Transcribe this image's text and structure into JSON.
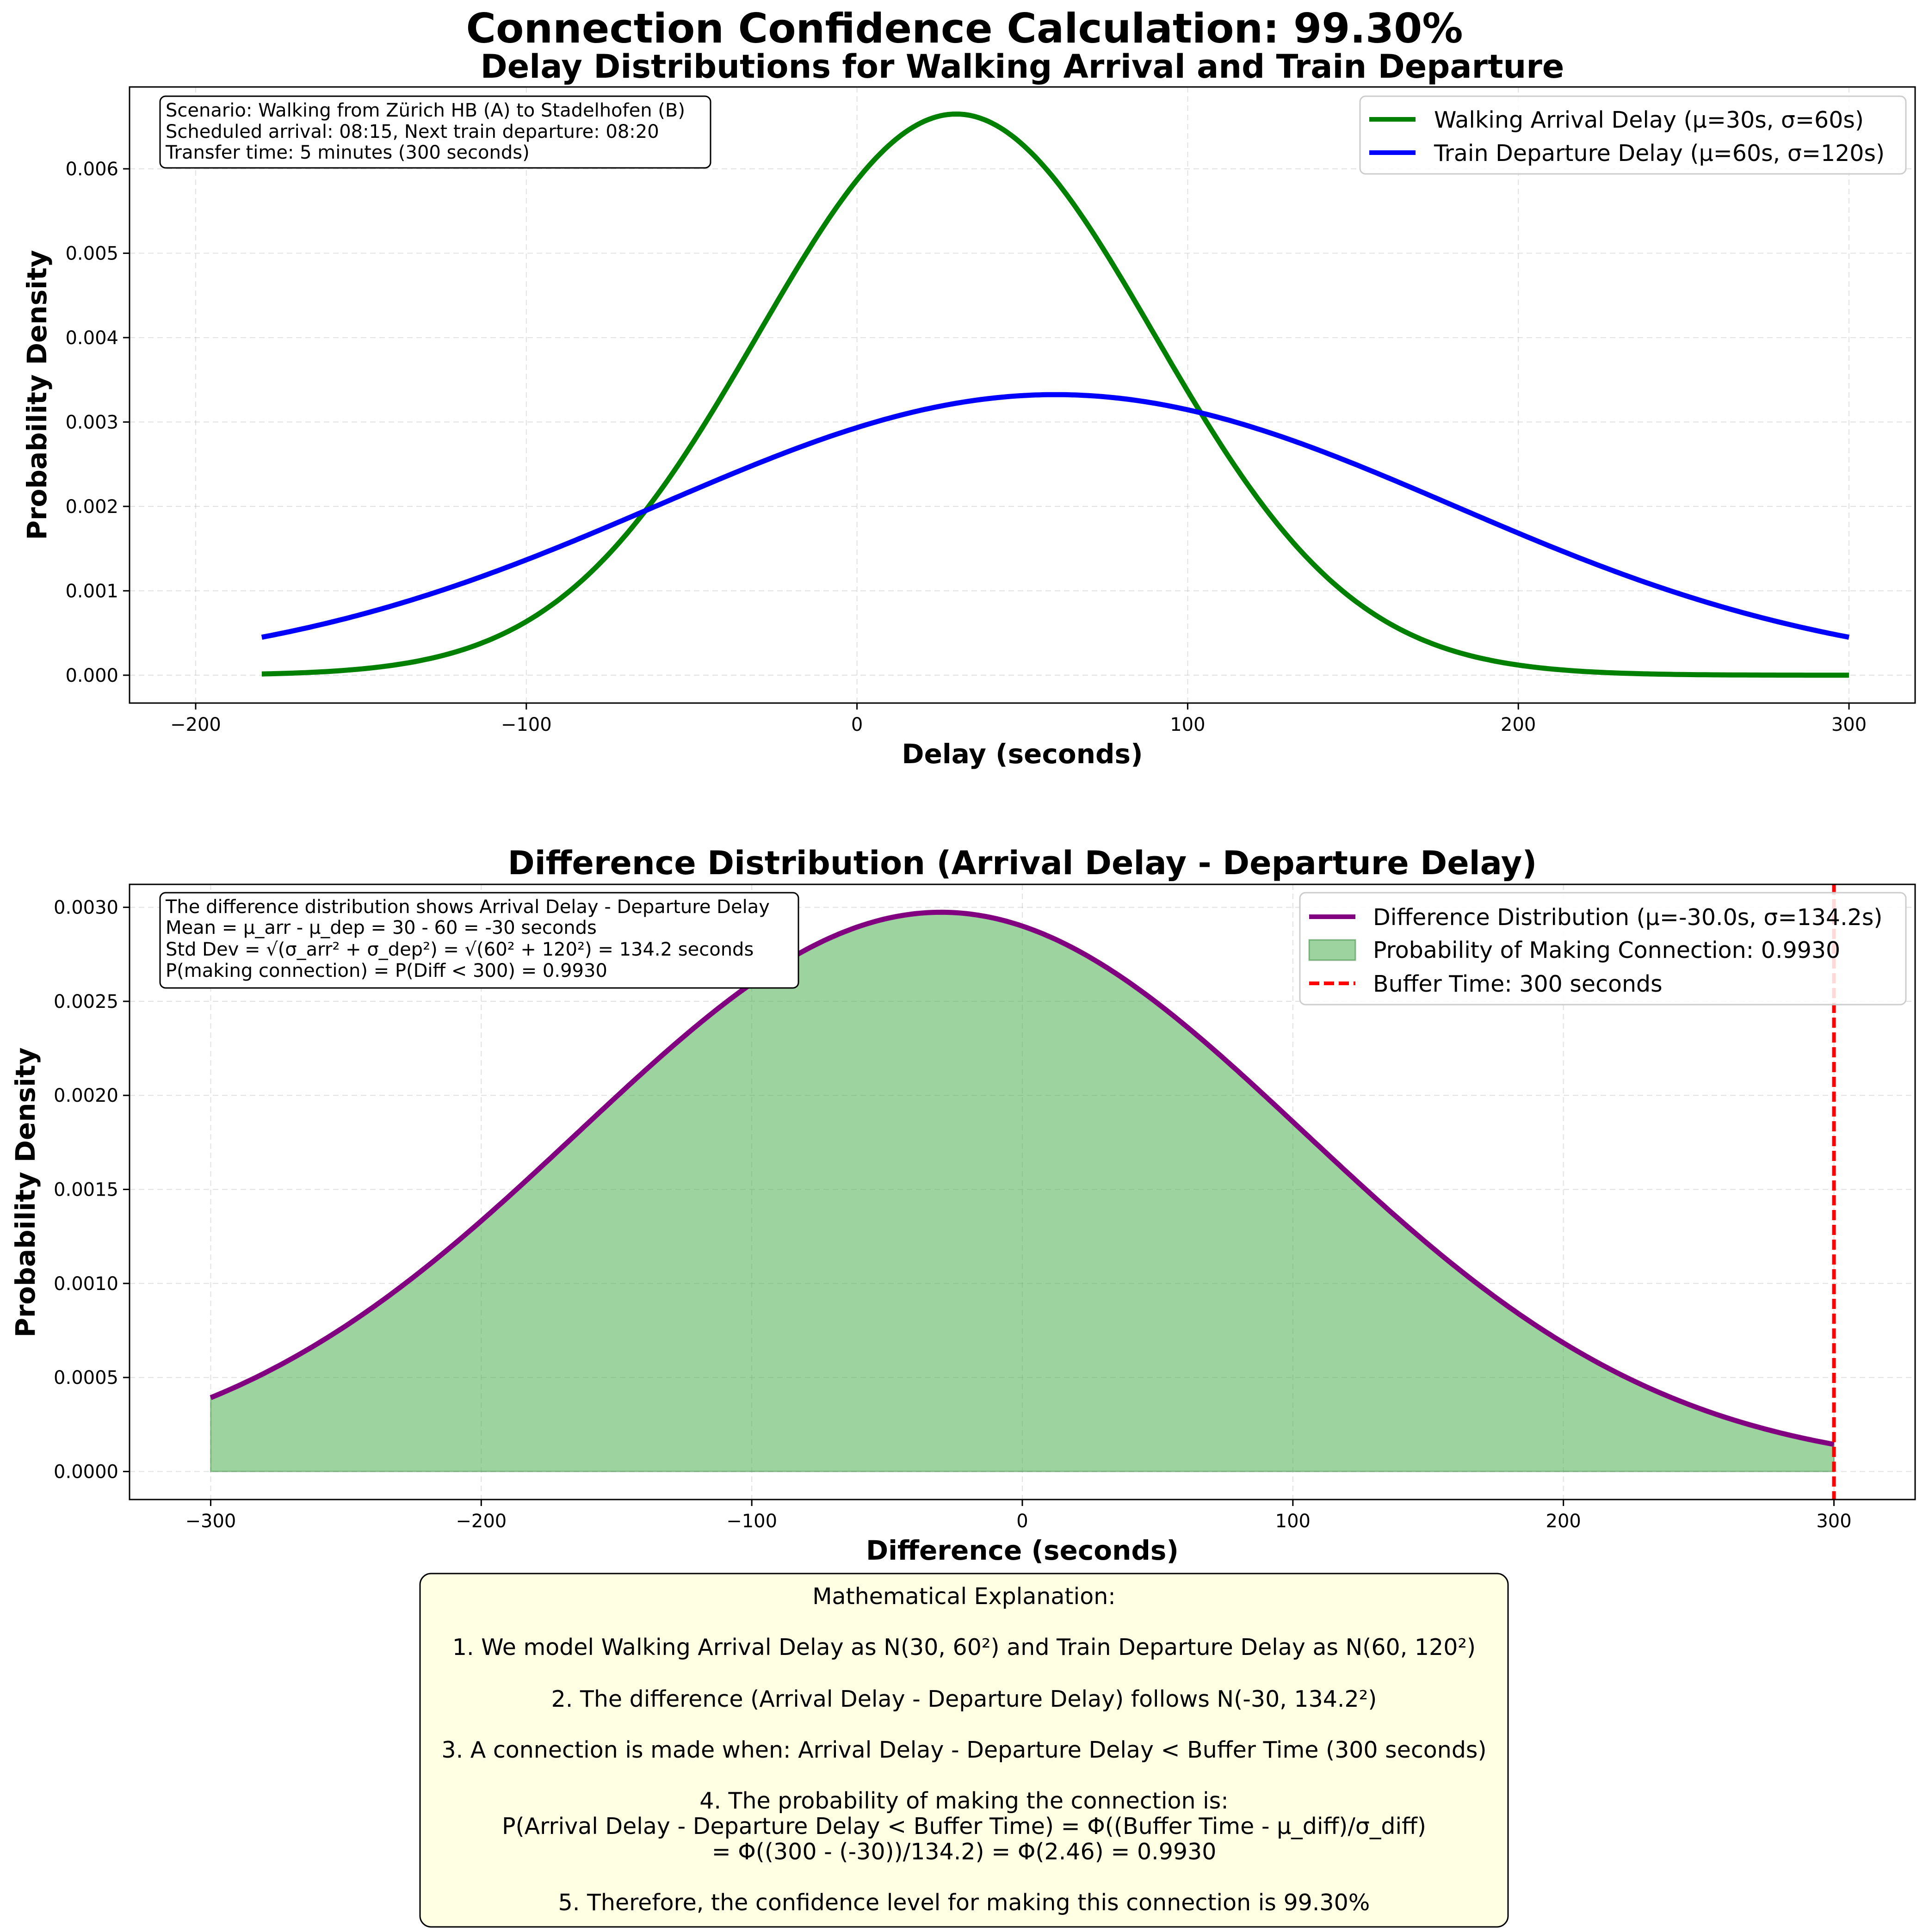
{
  "figure": {
    "title": "Connection Confidence Calculation: 99.30%"
  },
  "chart_data": [
    {
      "type": "line",
      "title": "Delay Distributions for Walking Arrival and Train Departure",
      "xlabel": "Delay (seconds)",
      "ylabel": "Probability Density",
      "xlim": [
        -220,
        320
      ],
      "ylim": [
        -0.00033,
        0.00697
      ],
      "xticks": [
        -200,
        -100,
        0,
        100,
        200,
        300
      ],
      "xtick_labels": [
        "−200",
        "−100",
        "0",
        "100",
        "200",
        "300"
      ],
      "yticks": [
        0,
        0.001,
        0.002,
        0.003,
        0.004,
        0.005,
        0.006
      ],
      "ytick_labels": [
        "0.000",
        "0.001",
        "0.002",
        "0.003",
        "0.004",
        "0.005",
        "0.006"
      ],
      "grid": true,
      "legend_position": "upper right",
      "x_range": [
        -180,
        300
      ],
      "series": [
        {
          "name": "Walking Arrival Delay (μ=30s, σ=60s)",
          "distribution": "normal",
          "mu": 30,
          "sigma": 60,
          "color": "#008000"
        },
        {
          "name": "Train Departure Delay (μ=60s, σ=120s)",
          "distribution": "normal",
          "mu": 60,
          "sigma": 120,
          "color": "#0000ff"
        }
      ],
      "annotation": {
        "lines": [
          "Scenario: Walking from Zürich HB (A) to Stadelhofen (B)",
          "Scheduled arrival: 08:15, Next train departure: 08:20",
          "Transfer time: 5 minutes (300 seconds)"
        ]
      }
    },
    {
      "type": "area",
      "title": "Difference Distribution (Arrival Delay - Departure Delay)",
      "xlabel": "Difference (seconds)",
      "ylabel": "Probability Density",
      "xlim": [
        -330,
        330
      ],
      "ylim": [
        -0.000149,
        0.003122
      ],
      "xticks": [
        -300,
        -200,
        -100,
        0,
        100,
        200,
        300
      ],
      "xtick_labels": [
        "−300",
        "−200",
        "−100",
        "0",
        "100",
        "200",
        "300"
      ],
      "yticks": [
        0,
        0.0005,
        0.001,
        0.0015,
        0.002,
        0.0025,
        0.003
      ],
      "ytick_labels": [
        "0.0000",
        "0.0005",
        "0.0010",
        "0.0015",
        "0.0020",
        "0.0025",
        "0.0030"
      ],
      "grid": true,
      "legend_position": "upper right",
      "x_range": [
        -300,
        300
      ],
      "series": [
        {
          "name": "Difference Distribution (μ=-30.0s, σ=134.2s)",
          "distribution": "normal",
          "mu": -30,
          "sigma": 134.16,
          "color": "#800080"
        },
        {
          "name": "Probability of Making Connection: 0.9930",
          "fill_to_x": 300,
          "color": "#4caf50"
        },
        {
          "name": "Buffer Time: 300 seconds",
          "vline_x": 300,
          "color": "#ff0000"
        }
      ],
      "annotation": {
        "lines": [
          "The difference distribution shows Arrival Delay - Departure Delay",
          "Mean = μ_arr - μ_dep = 30 - 60 = -30 seconds",
          "Std Dev = √(σ_arr² + σ_dep²) = √(60² + 120²) = 134.2 seconds",
          "P(making connection) = P(Diff < 300) = 0.9930"
        ]
      }
    }
  ],
  "explanation": {
    "lines": [
      "Mathematical Explanation:",
      "",
      "1. We model Walking Arrival Delay as N(30, 60²) and Train Departure Delay as N(60, 120²)",
      "",
      "2. The difference (Arrival Delay - Departure Delay) follows N(-30, 134.2²)",
      "",
      "3. A connection is made when: Arrival Delay - Departure Delay < Buffer Time (300 seconds)",
      "",
      "4. The probability of making the connection is:",
      "P(Arrival Delay - Departure Delay < Buffer Time) = Φ((Buffer Time - μ_diff)/σ_diff)",
      "= Φ((300 - (-30))/134.2) = Φ(2.46) = 0.9930",
      "",
      "5. Therefore, the confidence level for making this connection is 99.30%"
    ]
  }
}
